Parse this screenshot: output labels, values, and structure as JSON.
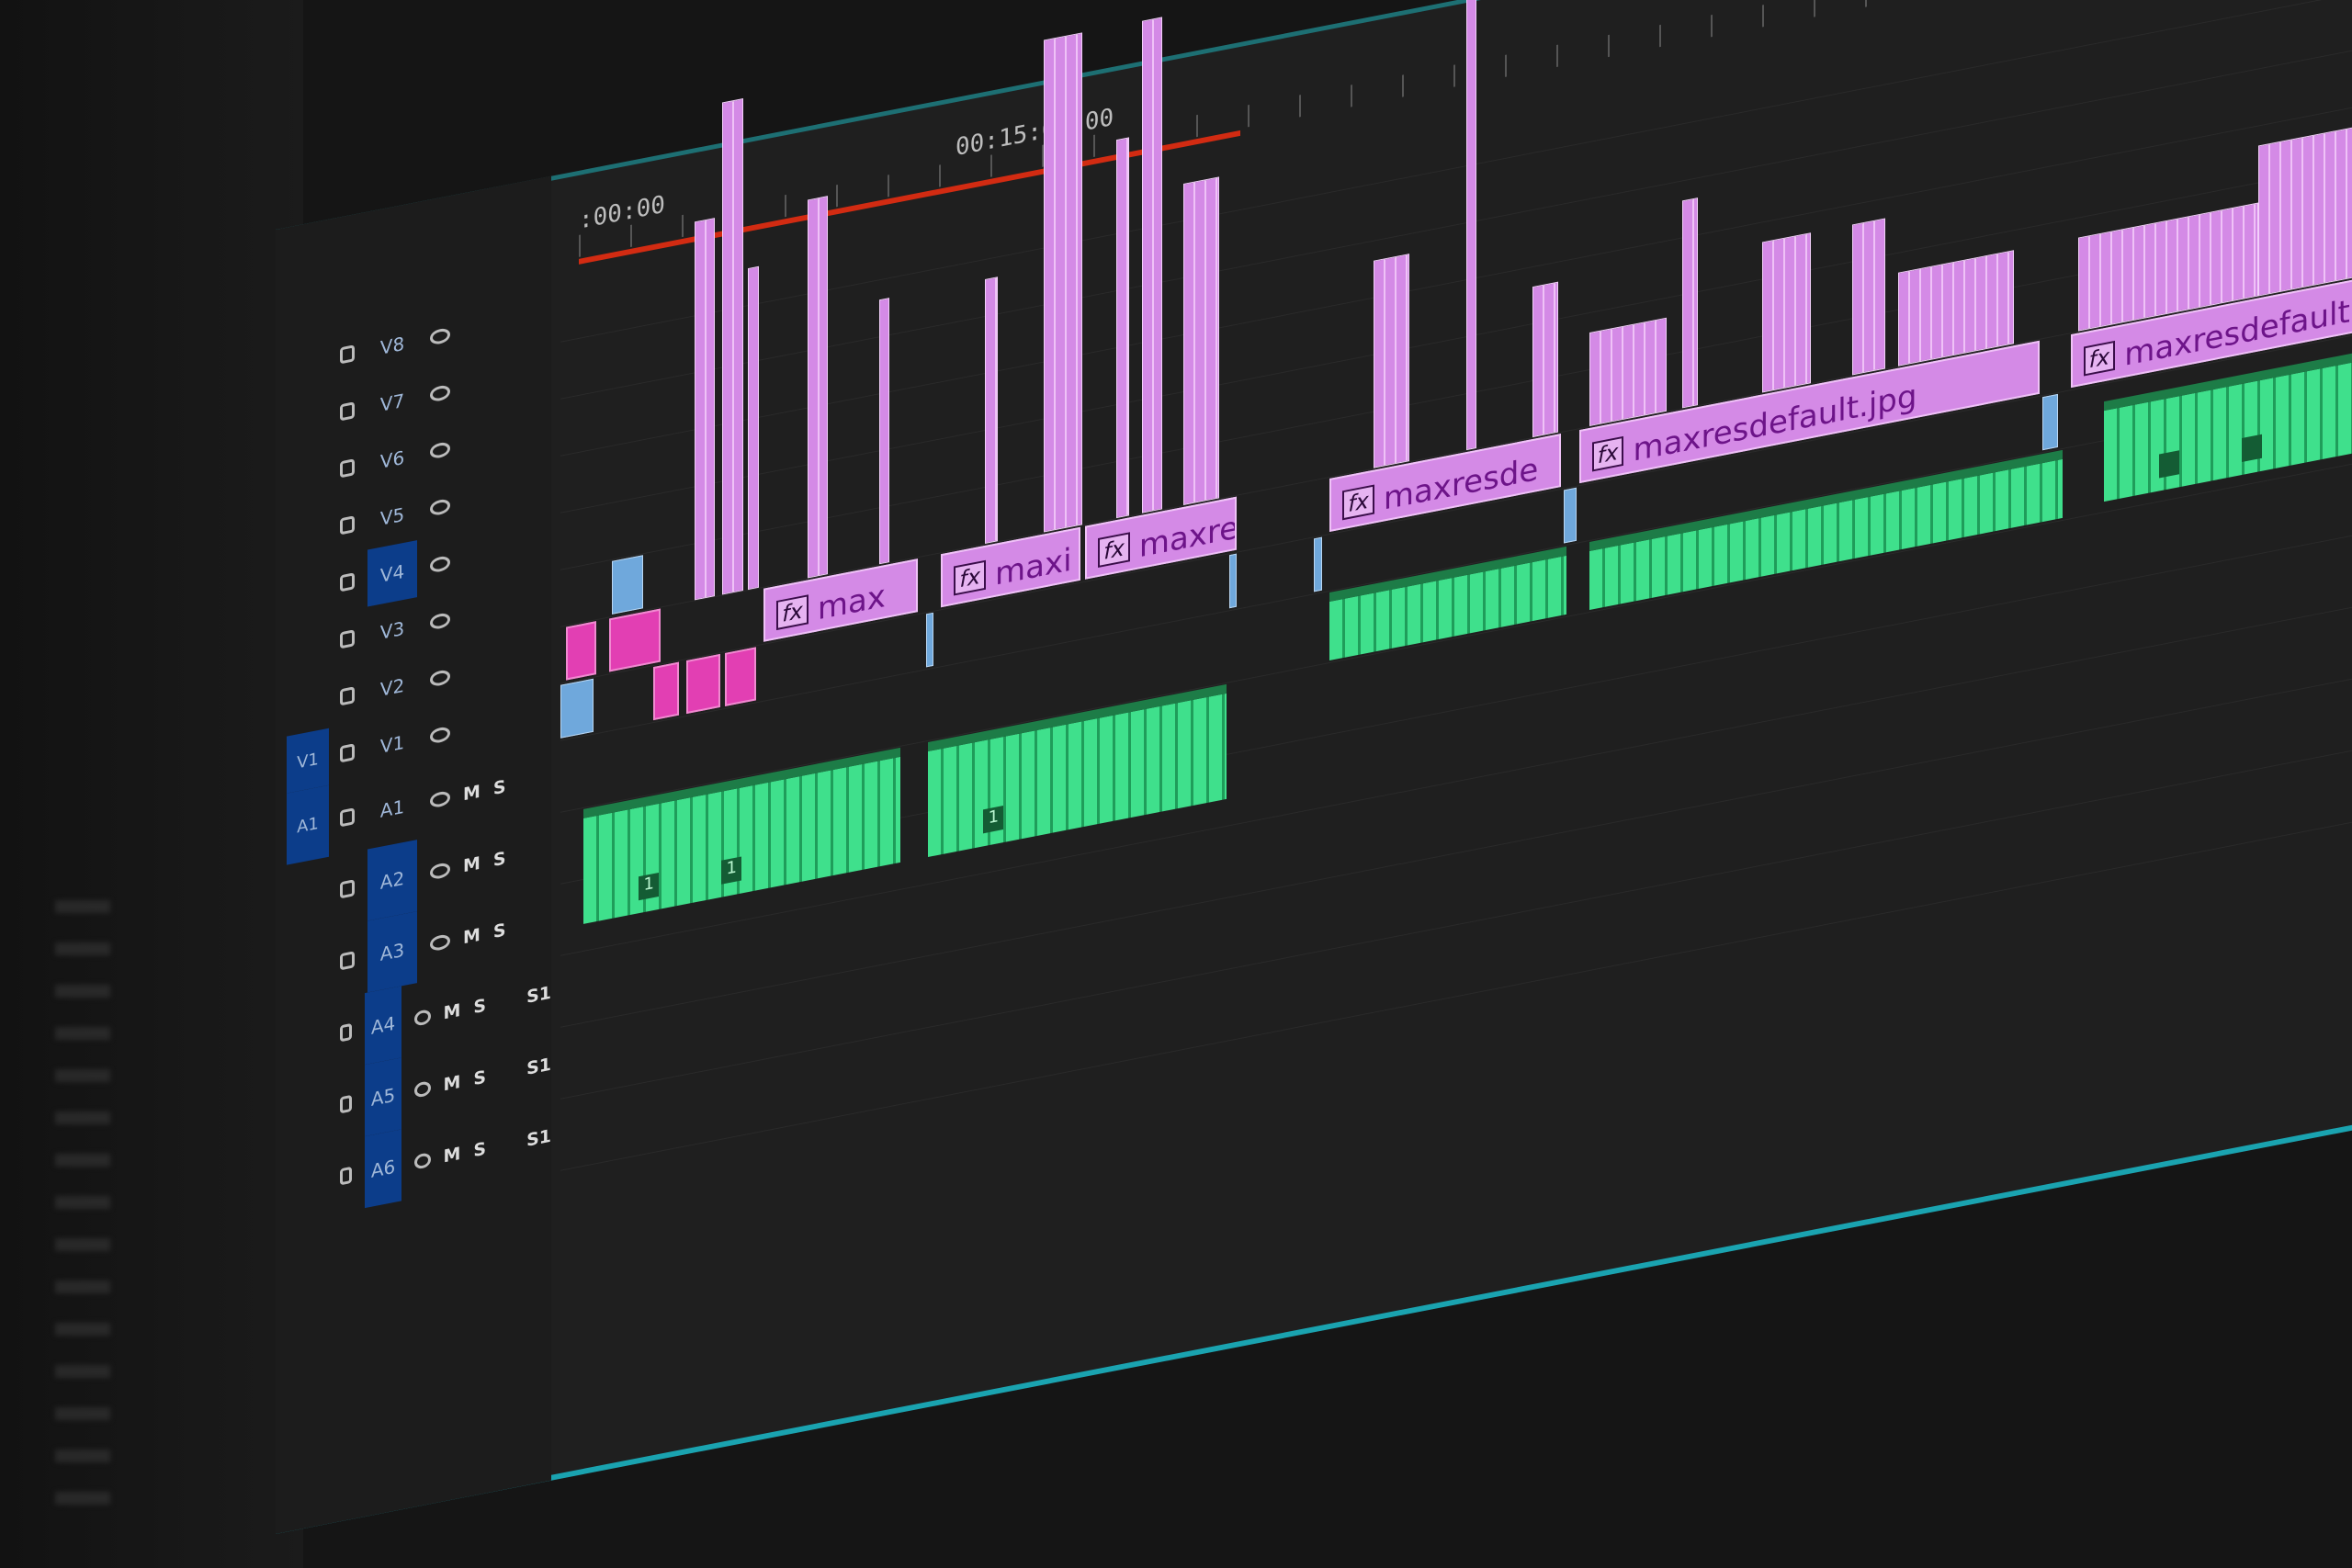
{
  "ruler": {
    "start_label": ":00:00",
    "mid_label": "00:15:00:00"
  },
  "colors": {
    "video_clip": "#d48ae6",
    "pink_clip": "#e23fb3",
    "blue_clip": "#6fa8dc",
    "audio_clip": "#3fe08c",
    "work_area_bar": "#d22b12",
    "track_target": "#0c3d8a",
    "panel_border": "#1aa3b0"
  },
  "tracks": {
    "source_patch_video": "V1",
    "source_patch_audio": "A1",
    "video": [
      "V8",
      "V7",
      "V6",
      "V5",
      "V4",
      "V3",
      "V2",
      "V1"
    ],
    "audio": [
      {
        "id": "A1",
        "mute": "M",
        "solo": "S",
        "value": ""
      },
      {
        "id": "A2",
        "mute": "M",
        "solo": "S",
        "value": ""
      },
      {
        "id": "A3",
        "mute": "M",
        "solo": "S",
        "value": ""
      },
      {
        "id": "A4",
        "mute": "M",
        "solo": "S",
        "value": "S1"
      },
      {
        "id": "A5",
        "mute": "M",
        "solo": "S",
        "value": "S1"
      },
      {
        "id": "A6",
        "mute": "M",
        "solo": "S",
        "value": "S1"
      }
    ]
  },
  "clips": {
    "video": [
      {
        "track": "V2",
        "start": 7.9,
        "end": 13.9,
        "name": "max",
        "fx": "fx"
      },
      {
        "track": "V2",
        "start": 14.8,
        "end": 20.2,
        "name": "maxi",
        "fx": "fx"
      },
      {
        "track": "V2",
        "start": 20.4,
        "end": 26.3,
        "name": "maxre",
        "fx": "fx"
      },
      {
        "track": "V2",
        "start": 29.9,
        "end": 38.9,
        "name": "maxresde",
        "fx": "fx"
      },
      {
        "track": "V2",
        "start": 39.6,
        "end": 57.5,
        "name": "maxresdefault.jpg",
        "fx": "fx"
      },
      {
        "track": "V2",
        "start": 58.7,
        "end": 90,
        "name": "maxresdefault.jpg",
        "fx": "fx"
      }
    ],
    "pink": [
      {
        "track": "V2",
        "start": 0.2,
        "end": 1.4
      },
      {
        "track": "V2",
        "start": 1.9,
        "end": 3.9
      },
      {
        "track": "V1",
        "start": 3.6,
        "end": 4.6
      },
      {
        "track": "V1",
        "start": 4.9,
        "end": 6.2
      },
      {
        "track": "V1",
        "start": 6.4,
        "end": 7.6
      }
    ],
    "blue": [
      {
        "track": "V1",
        "start": 0,
        "end": 1.3
      },
      {
        "track": "V3",
        "start": 2.0,
        "end": 3.2
      },
      {
        "track": "V1",
        "start": 14.2,
        "end": 14.5
      },
      {
        "track": "V1",
        "start": 26.0,
        "end": 26.3
      },
      {
        "track": "V1",
        "start": 29.3,
        "end": 29.6
      },
      {
        "track": "V1",
        "start": 39.0,
        "end": 39.5
      },
      {
        "track": "V1",
        "start": 57.6,
        "end": 58.2
      }
    ],
    "stacks": [
      {
        "start": 5.2,
        "end": 6.0,
        "levels": 6
      },
      {
        "start": 6.3,
        "end": 7.1,
        "levels": 8
      },
      {
        "start": 7.3,
        "end": 7.7,
        "levels": 5
      },
      {
        "start": 9.6,
        "end": 10.4,
        "levels": 6
      },
      {
        "start": 12.4,
        "end": 12.8,
        "levels": 4
      },
      {
        "start": 16.5,
        "end": 17.0,
        "levels": 4
      },
      {
        "start": 18.8,
        "end": 20.3,
        "levels": 8
      },
      {
        "start": 21.6,
        "end": 22.1,
        "levels": 6
      },
      {
        "start": 22.6,
        "end": 23.4,
        "levels": 8
      },
      {
        "start": 24.2,
        "end": 25.6,
        "levels": 5
      },
      {
        "start": 31.6,
        "end": 33.0,
        "levels": 3
      },
      {
        "start": 35.2,
        "end": 35.6,
        "levels": 8
      },
      {
        "start": 37.8,
        "end": 38.8,
        "levels": 2
      },
      {
        "start": 40,
        "end": 43,
        "levels": 1
      },
      {
        "start": 43.6,
        "end": 44.2,
        "levels": 3
      },
      {
        "start": 46.7,
        "end": 48.6,
        "levels": 2
      },
      {
        "start": 50.2,
        "end": 51.5,
        "levels": 2
      },
      {
        "start": 52,
        "end": 56.5,
        "levels": 1
      },
      {
        "start": 59,
        "end": 66,
        "levels": 1
      },
      {
        "start": 66,
        "end": 72,
        "levels": 2
      },
      {
        "start": 74,
        "end": 78,
        "levels": 2
      },
      {
        "start": 80,
        "end": 82,
        "levels": 6
      },
      {
        "start": 84,
        "end": 86,
        "levels": 7
      }
    ],
    "audio": [
      {
        "track": "A2",
        "start": 0.9,
        "end": 13.2,
        "labels": [
          "1",
          "1"
        ]
      },
      {
        "track": "A2",
        "start": 14.3,
        "end": 25.9,
        "labels": [
          "1"
        ]
      },
      {
        "track": "A1",
        "start": 29.9,
        "end": 39.1,
        "labels": []
      },
      {
        "track": "A1",
        "start": 40.0,
        "end": 58.4,
        "labels": []
      },
      {
        "track": "V1",
        "start": 60.0,
        "end": 90,
        "labels": [
          "",
          ""
        ]
      }
    ]
  }
}
